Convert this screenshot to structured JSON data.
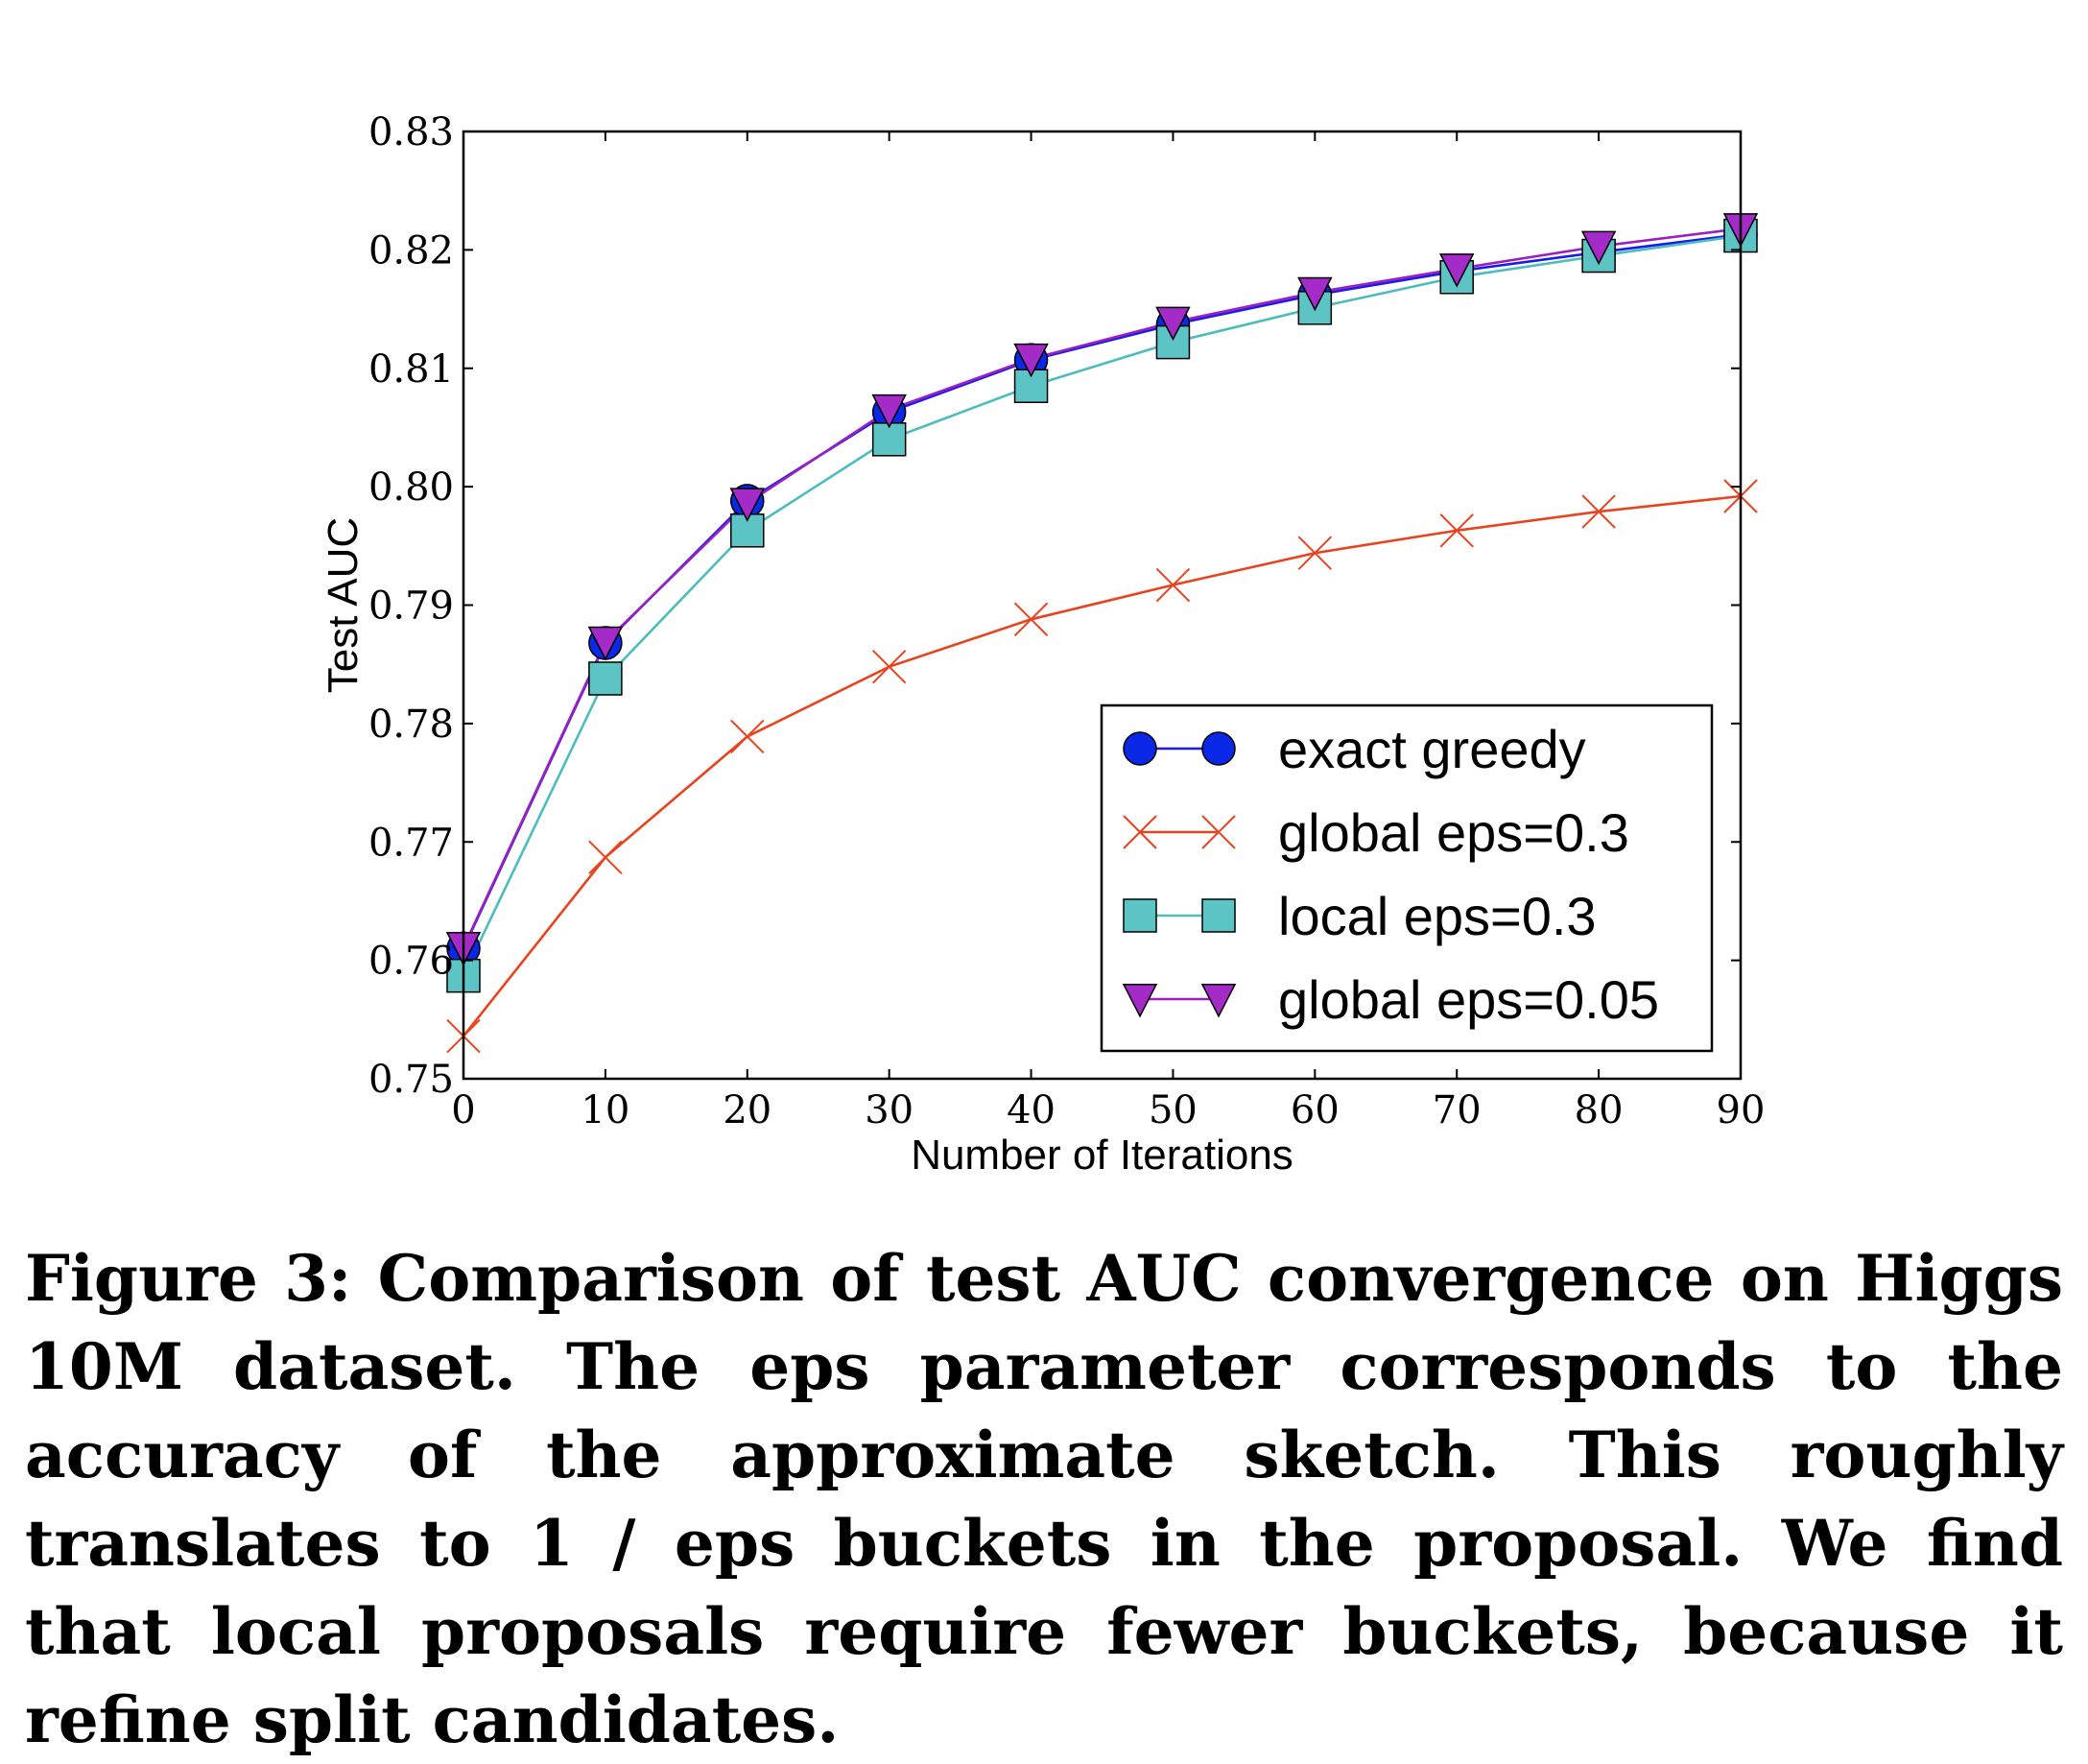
{
  "chart_data": {
    "type": "line",
    "title": "",
    "xlabel": "Number of Iterations",
    "ylabel": "Test AUC",
    "xlim": [
      0,
      90
    ],
    "ylim": [
      0.75,
      0.83
    ],
    "x_ticks": [
      "0",
      "10",
      "20",
      "30",
      "40",
      "50",
      "60",
      "70",
      "80",
      "90"
    ],
    "y_ticks": [
      "0.75",
      "0.76",
      "0.77",
      "0.78",
      "0.79",
      "0.80",
      "0.81",
      "0.82",
      "0.83"
    ],
    "x": [
      0,
      10,
      20,
      30,
      40,
      50,
      60,
      70,
      80,
      90
    ],
    "legend_position": "lower-right",
    "series": [
      {
        "name": "exact greedy",
        "marker": "circle",
        "color": "#1a1aee",
        "fill": "#0a28e6",
        "values": [
          0.761,
          0.7868,
          0.7988,
          0.8063,
          0.8107,
          0.8137,
          0.8162,
          0.8182,
          0.8198,
          0.8213
        ]
      },
      {
        "name": "global eps=0.3",
        "marker": "x",
        "color": "#e8431e",
        "fill": "#e8431e",
        "values": [
          0.7536,
          0.7687,
          0.7789,
          0.7848,
          0.7888,
          0.7917,
          0.7944,
          0.7963,
          0.7979,
          0.7992
        ]
      },
      {
        "name": "local eps=0.3",
        "marker": "square",
        "color": "#4dbcbc",
        "fill": "#5cc4c4",
        "values": [
          0.7587,
          0.7838,
          0.7963,
          0.804,
          0.8085,
          0.8122,
          0.8151,
          0.8177,
          0.8195,
          0.8212
        ]
      },
      {
        "name": "global eps=0.05",
        "marker": "triangle-down",
        "color": "#9b20c0",
        "fill": "#a52bc8",
        "values": [
          0.7611,
          0.7869,
          0.7986,
          0.8065,
          0.8108,
          0.8139,
          0.8164,
          0.8184,
          0.8203,
          0.8218
        ]
      }
    ]
  },
  "caption": {
    "text": "Figure 3: Comparison of test AUC convergence on Higgs 10M dataset. The eps parameter corresponds to the accuracy of the approximate sketch. This roughly translates to 1 / eps buckets in the proposal. We find that local proposals require fewer buckets, because it refine split candidates."
  }
}
